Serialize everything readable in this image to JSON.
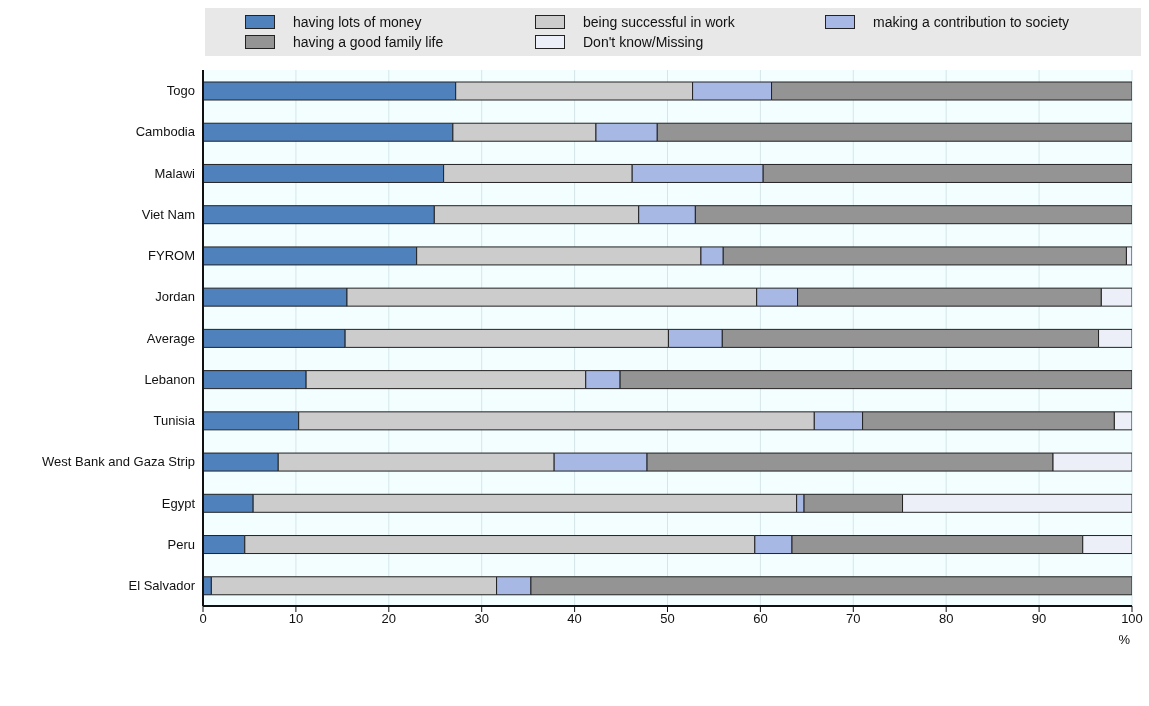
{
  "chart_data": {
    "type": "bar",
    "orientation": "horizontal",
    "stacked": true,
    "xlabel": "%",
    "categories": [
      "Togo",
      "Cambodia",
      "Malawi",
      "Viet Nam",
      "FYROM",
      "Jordan",
      "Average",
      "Lebanon",
      "Tunisia",
      "West Bank and Gaza Strip",
      "Egypt",
      "Peru",
      "El Salvador"
    ],
    "series": [
      {
        "name": "having lots of money",
        "color": "#4f81bd",
        "values": [
          27.2,
          26.9,
          25.9,
          24.9,
          23.0,
          15.5,
          15.3,
          11.1,
          10.3,
          8.1,
          5.4,
          4.5,
          0.9
        ]
      },
      {
        "name": "being successful in work",
        "color": "#cccccc",
        "values": [
          25.5,
          15.4,
          20.3,
          22.0,
          30.6,
          44.1,
          34.8,
          30.1,
          55.5,
          29.7,
          58.5,
          54.9,
          30.7
        ]
      },
      {
        "name": "making a contribution to society",
        "color": "#a6b8e3",
        "values": [
          8.5,
          6.6,
          14.1,
          6.1,
          2.4,
          4.4,
          5.8,
          3.7,
          5.2,
          10.0,
          0.8,
          4.0,
          3.7
        ]
      },
      {
        "name": "having a good family life",
        "color": "#949494",
        "values": [
          38.8,
          51.1,
          39.7,
          47.0,
          43.4,
          32.7,
          40.5,
          55.1,
          27.1,
          43.7,
          10.6,
          31.3,
          64.7
        ]
      },
      {
        "name": "Don't know/Missing",
        "color": "#eceff8",
        "values": [
          0,
          0,
          0,
          0,
          0.6,
          3.3,
          3.6,
          0,
          1.9,
          8.5,
          24.7,
          5.3,
          0
        ]
      }
    ],
    "xlim": [
      0,
      100
    ],
    "xticks": [
      0,
      10,
      20,
      30,
      40,
      50,
      60,
      70,
      80,
      90,
      100
    ],
    "grid": "x",
    "legend": "top"
  }
}
